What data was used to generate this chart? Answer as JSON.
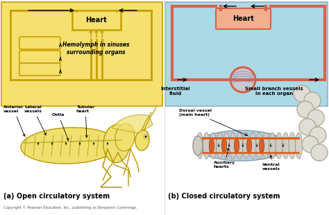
{
  "bg_color": "#ffffff",
  "top_left_bg": "#f5e070",
  "top_right_bg": "#add8e6",
  "top_left_label": "Heart",
  "top_right_label": "Heart",
  "top_left_sublabel": "Hemolymph in sinuses\nsurrounding organs",
  "top_right_sublabel1": "Interstitial\nfluid",
  "top_right_sublabel2": "Small branch vessels\nin each organ",
  "bottom_left_title": "(a) Open circulatory system",
  "bottom_right_title": "(b) Closed circulatory system",
  "copyright": "Copyright © Pearson Education, Inc., publishing as Benjamin Cummings.",
  "heart_color": "#c8a000",
  "heart_lw": 2.0,
  "closed_heart_color": "#d4634a",
  "top_left_bg_stroke": "#c8a000",
  "grasshopper_body": "#f0e070",
  "grasshopper_edge": "#b89800",
  "worm_seg_color": "#d0ccc0",
  "worm_vessel_color": "#e05818",
  "worm_bg_color": "#a8c8d8"
}
